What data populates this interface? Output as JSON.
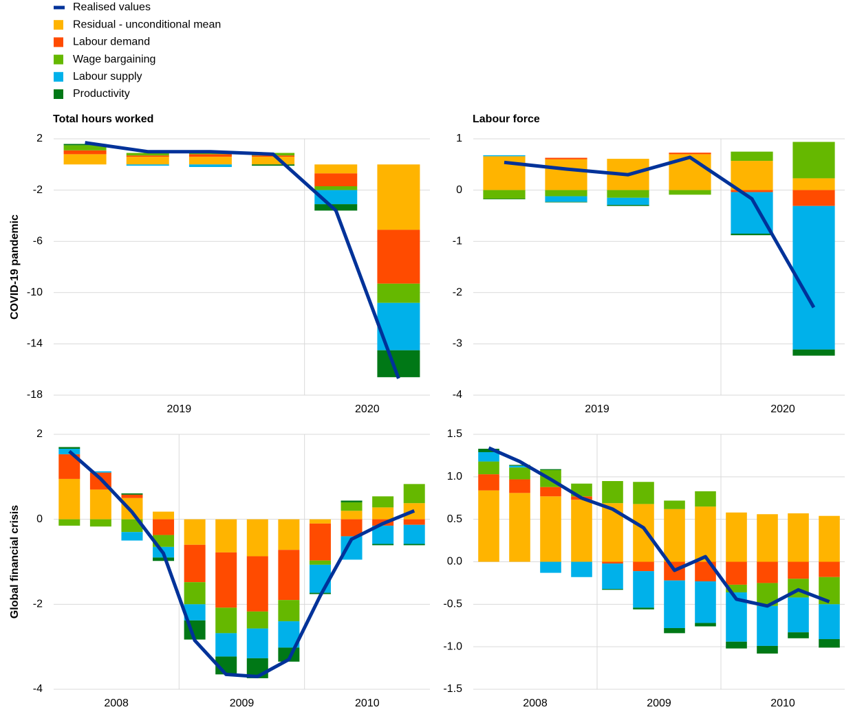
{
  "legend": [
    {
      "name": "Realised values",
      "color": "#003299"
    },
    {
      "name": "Residual - unconditional mean",
      "color": "#ffb400"
    },
    {
      "name": "Labour demand",
      "color": "#ff4b00"
    },
    {
      "name": "Wage bargaining",
      "color": "#65b800"
    },
    {
      "name": "Labour supply",
      "color": "#00b1ea"
    },
    {
      "name": "Productivity",
      "color": "#007816"
    }
  ],
  "chart_data": [
    {
      "type": "bar",
      "title": "Total hours worked",
      "ylabel": "COVID-19 pandemic",
      "categories": [
        null,
        null,
        null,
        null,
        null,
        null
      ],
      "year_groups": [
        {
          "label": "2019",
          "size": 4
        },
        {
          "label": "2020",
          "size": 2
        }
      ],
      "ylim": [
        -18,
        2
      ],
      "yticks": [
        -18,
        -14,
        -10,
        -6,
        -2,
        2
      ],
      "grid": true,
      "line": {
        "values": [
          1.7,
          1.0,
          1.0,
          0.8,
          -3.6,
          -16.7
        ]
      },
      "series": [
        {
          "values": [
            0.8,
            0.6,
            0.6,
            0.6,
            -0.7,
            -5.1
          ]
        },
        {
          "values": [
            0.3,
            0.1,
            0.2,
            0.1,
            -1.0,
            -4.2
          ]
        },
        {
          "values": [
            0.4,
            0.2,
            0.1,
            0.2,
            -0.3,
            -1.5
          ]
        },
        {
          "values": [
            0,
            -0.1,
            -0.2,
            0,
            -1.1,
            -3.7
          ]
        },
        {
          "values": [
            0.1,
            0,
            0,
            -0.1,
            -0.5,
            -2.1
          ]
        }
      ]
    },
    {
      "type": "bar",
      "title": "Labour force",
      "categories": [
        null,
        null,
        null,
        null,
        null,
        null
      ],
      "year_groups": [
        {
          "label": "2019",
          "size": 4
        },
        {
          "label": "2020",
          "size": 2
        }
      ],
      "ylim": [
        -4,
        1
      ],
      "yticks": [
        -4,
        -3,
        -2,
        -1,
        0,
        1
      ],
      "grid": true,
      "line": {
        "values": [
          0.54,
          0.41,
          0.3,
          0.64,
          -0.17,
          -2.29
        ]
      },
      "series": [
        {
          "values": [
            0.66,
            0.6,
            0.61,
            0.7,
            0.57,
            0.23
          ]
        },
        {
          "values": [
            0,
            0.03,
            0,
            0.03,
            -0.04,
            -0.31
          ]
        },
        {
          "values": [
            -0.17,
            -0.12,
            -0.15,
            -0.09,
            0.18,
            0.71
          ]
        },
        {
          "values": [
            0.02,
            -0.11,
            -0.14,
            0,
            -0.81,
            -2.8
          ]
        },
        {
          "values": [
            -0.01,
            -0.01,
            -0.02,
            0,
            -0.03,
            -0.12
          ]
        }
      ]
    },
    {
      "type": "bar",
      "ylabel": "Global financial crisis",
      "categories": [
        null,
        null,
        null,
        null,
        null,
        null,
        null,
        null,
        null,
        null,
        null,
        null
      ],
      "year_groups": [
        {
          "label": "2008",
          "size": 4
        },
        {
          "label": "2009",
          "size": 4
        },
        {
          "label": "2010",
          "size": 4
        }
      ],
      "ylim": [
        -4,
        2
      ],
      "yticks": [
        -4,
        -2,
        0,
        2
      ],
      "grid": true,
      "line": {
        "values": [
          1.6,
          0.95,
          0.17,
          -0.8,
          -2.85,
          -3.65,
          -3.7,
          -3.3,
          -1.8,
          -0.47,
          -0.1,
          0.2
        ]
      },
      "series": [
        {
          "values": [
            0.95,
            0.7,
            0.5,
            0.18,
            -0.6,
            -0.78,
            -0.87,
            -0.72,
            -0.1,
            0.2,
            0.28,
            0.38
          ]
        },
        {
          "values": [
            0.58,
            0.4,
            0.08,
            -0.37,
            -0.88,
            -1.3,
            -1.3,
            -1.18,
            -0.87,
            -0.4,
            -0.15,
            -0.13
          ]
        },
        {
          "values": [
            -0.15,
            -0.17,
            -0.3,
            -0.28,
            -0.52,
            -0.6,
            -0.4,
            -0.5,
            -0.1,
            0.2,
            0.26,
            0.45
          ]
        },
        {
          "values": [
            0.13,
            0.03,
            -0.2,
            -0.25,
            -0.38,
            -0.55,
            -0.7,
            -0.62,
            -0.66,
            -0.55,
            -0.43,
            -0.45
          ]
        },
        {
          "values": [
            0.04,
            0,
            0.03,
            -0.08,
            -0.45,
            -0.42,
            -0.47,
            -0.33,
            -0.03,
            0.04,
            -0.03,
            -0.03
          ]
        }
      ]
    },
    {
      "type": "bar",
      "categories": [
        null,
        null,
        null,
        null,
        null,
        null,
        null,
        null,
        null,
        null,
        null,
        null
      ],
      "year_groups": [
        {
          "label": "2008",
          "size": 4
        },
        {
          "label": "2009",
          "size": 4
        },
        {
          "label": "2010",
          "size": 4
        }
      ],
      "ylim": [
        -1.5,
        1.5
      ],
      "yticks": [
        -1.5,
        {
          "value": -1,
          "label": "-1.0"
        },
        -0.5,
        {
          "value": 0,
          "label": "0.0"
        },
        0.5,
        {
          "value": 1,
          "label": "1.0"
        },
        1.5
      ],
      "grid": true,
      "line": {
        "values": [
          1.34,
          1.18,
          0.97,
          0.75,
          0.62,
          0.4,
          -0.1,
          0.06,
          -0.44,
          -0.52,
          -0.33,
          -0.47
        ]
      },
      "series": [
        {
          "values": [
            0.84,
            0.81,
            0.77,
            0.73,
            0.69,
            0.68,
            0.62,
            0.65,
            0.58,
            0.56,
            0.57,
            0.54
          ]
        },
        {
          "values": [
            0.19,
            0.16,
            0.11,
            0.04,
            -0.02,
            -0.11,
            -0.22,
            -0.23,
            -0.27,
            -0.25,
            -0.2,
            -0.18
          ]
        },
        {
          "values": [
            0.15,
            0.14,
            0.2,
            0.15,
            0.26,
            0.26,
            0.1,
            0.18,
            -0.09,
            -0.27,
            -0.22,
            -0.32
          ]
        },
        {
          "values": [
            0.11,
            0.02,
            -0.13,
            -0.18,
            -0.3,
            -0.43,
            -0.56,
            -0.49,
            -0.58,
            -0.47,
            -0.41,
            -0.41
          ]
        },
        {
          "values": [
            0.04,
            0.01,
            0.01,
            0,
            -0.01,
            -0.02,
            -0.06,
            -0.04,
            -0.08,
            -0.09,
            -0.07,
            -0.1
          ]
        }
      ]
    }
  ]
}
